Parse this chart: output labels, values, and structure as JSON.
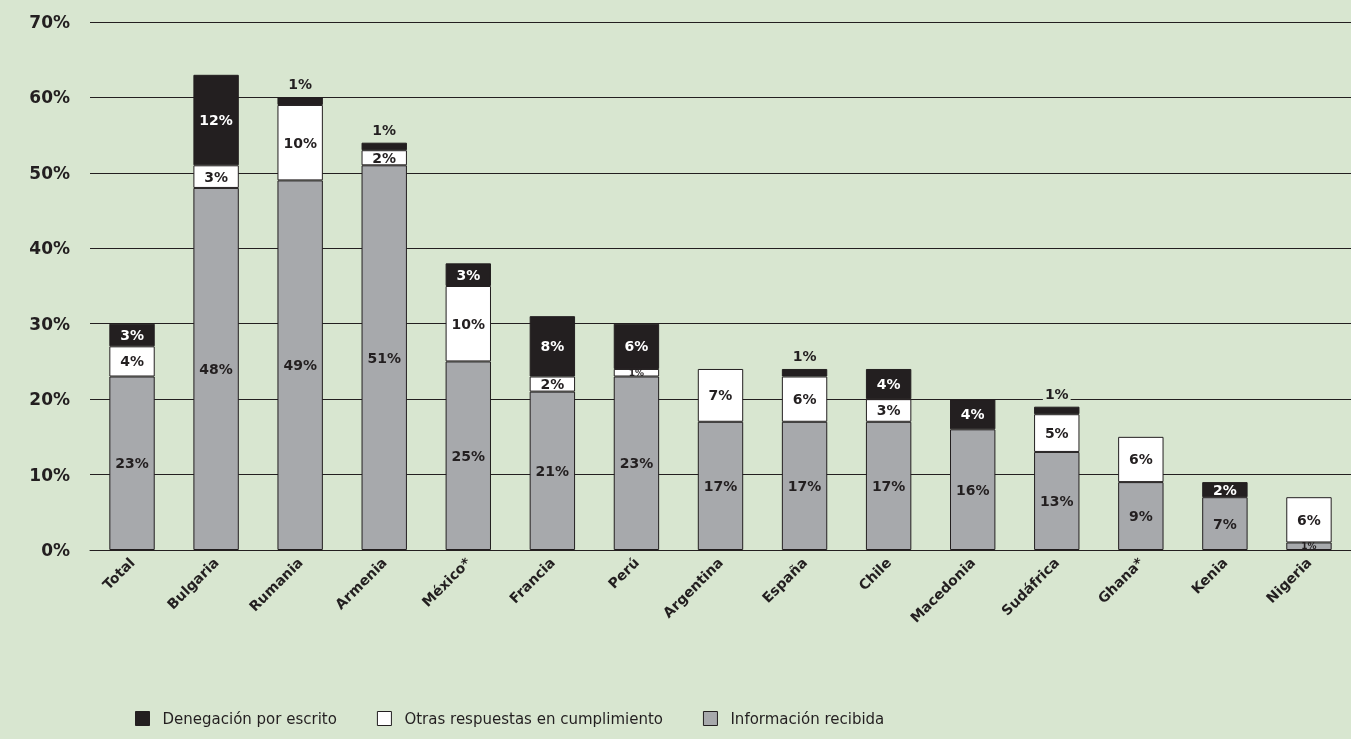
{
  "chart_data": {
    "type": "bar",
    "stacked": true,
    "categories": [
      "Total",
      "Bulgaria",
      "Rumania",
      "Armenia",
      "México*",
      "Francia",
      "Perú",
      "Argentina",
      "España",
      "Chile",
      "Macedonia",
      "Sudáfrica",
      "Ghana*",
      "Kenia",
      "Nigeria"
    ],
    "series": [
      {
        "name": "Información recibida",
        "color": "#a7a9ac",
        "values": [
          23,
          48,
          49,
          51,
          25,
          21,
          23,
          17,
          17,
          17,
          16,
          13,
          9,
          7,
          1
        ],
        "value_labels": [
          "23%",
          "48%",
          "49%",
          "51%",
          "25%",
          "21%",
          "23%",
          "17%",
          "17%",
          "17%",
          "16%",
          "13%",
          "9%",
          "7%",
          "1%"
        ]
      },
      {
        "name": "Otras respuestas en cumplimiento",
        "color": "#ffffff",
        "values": [
          4,
          3,
          10,
          2,
          10,
          2,
          1,
          7,
          6,
          3,
          null,
          5,
          6,
          null,
          6
        ],
        "value_labels": [
          "4%",
          "3%",
          "10%",
          "2%",
          "10%",
          "2%",
          "1%",
          "7%",
          "6%",
          "3%",
          null,
          "5%",
          "6%",
          null,
          "6%"
        ]
      },
      {
        "name": "Denegación por escrito",
        "color": "#231f20",
        "values": [
          3,
          12,
          1,
          1,
          3,
          8,
          6,
          null,
          1,
          4,
          4,
          1,
          null,
          2,
          null
        ],
        "value_labels": [
          "3%",
          "12%",
          "1%",
          "1%",
          "3%",
          "8%",
          "6%",
          null,
          "1%",
          "4%",
          "4%",
          "1%",
          null,
          "2%",
          null
        ]
      }
    ],
    "ylim": [
      0,
      70
    ],
    "yticks": [
      {
        "value": 0,
        "label": "0%"
      },
      {
        "value": 10,
        "label": "10%"
      },
      {
        "value": 20,
        "label": "20%"
      },
      {
        "value": 30,
        "label": "30%"
      },
      {
        "value": 40,
        "label": "40%"
      },
      {
        "value": 50,
        "label": "50%"
      },
      {
        "value": 60,
        "label": "60%"
      },
      {
        "value": 70,
        "label": "70%"
      }
    ],
    "grid": "y",
    "legend": "bottom left"
  }
}
